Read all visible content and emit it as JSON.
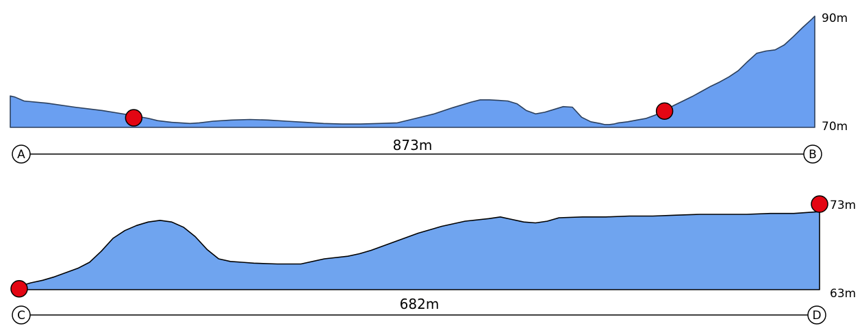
{
  "chart_data": [
    {
      "type": "area",
      "start_label": "A",
      "end_label": "B",
      "distance_label": "873m",
      "total_distance_m": 873,
      "y_top_label": "90m",
      "y_bottom_label": "70m",
      "ylim": [
        70,
        90
      ],
      "fill_color": "#6a9ff1",
      "line_color": "#2b3f5c",
      "marker_color": "#e30613",
      "profile": {
        "x": [
          0,
          5,
          15,
          40,
          70,
          100,
          130,
          150,
          160,
          170,
          175,
          185,
          195,
          205,
          220,
          240,
          260,
          280,
          300,
          320,
          340,
          360,
          380,
          400,
          420,
          440,
          460,
          480,
          500,
          510,
          520,
          530,
          540,
          550,
          560,
          570,
          580,
          590,
          600,
          610,
          620,
          630,
          640,
          645,
          650,
          655,
          660,
          670,
          680,
          690,
          700,
          710,
          720,
          730,
          740,
          750,
          760,
          770,
          780,
          790,
          800,
          810,
          820,
          830,
          840,
          850,
          860,
          870,
          873
        ],
        "y": [
          75.6,
          75.4,
          74.7,
          74.3,
          73.6,
          73.0,
          72.2,
          71.6,
          71.2,
          71.0,
          70.9,
          70.8,
          70.7,
          70.8,
          71.1,
          71.3,
          71.4,
          71.3,
          71.1,
          70.9,
          70.7,
          70.6,
          70.6,
          70.7,
          70.8,
          71.6,
          72.4,
          73.5,
          74.5,
          74.9,
          74.9,
          74.8,
          74.7,
          74.2,
          73.0,
          72.4,
          72.7,
          73.2,
          73.7,
          73.6,
          71.8,
          71.0,
          70.7,
          70.5,
          70.5,
          70.6,
          70.8,
          71.0,
          71.3,
          71.6,
          72.2,
          73.0,
          73.9,
          74.7,
          75.5,
          76.4,
          77.3,
          78.1,
          79.0,
          80.1,
          81.7,
          83.2,
          83.6,
          83.8,
          84.7,
          86.2,
          87.8,
          89.3,
          89.8
        ]
      },
      "markers": [
        {
          "x": 134,
          "y": 71.7
        },
        {
          "x": 710,
          "y": 72.9
        }
      ]
    },
    {
      "type": "area",
      "start_label": "C",
      "end_label": "D",
      "distance_label": "682m",
      "total_distance_m": 682,
      "y_top_label": "73m",
      "y_bottom_label": "63m",
      "ylim": [
        63,
        73
      ],
      "fill_color": "#6fa4ef",
      "line_color": "#000000",
      "marker_color": "#e30613",
      "profile": {
        "x": [
          0,
          10,
          20,
          30,
          40,
          50,
          60,
          70,
          80,
          90,
          100,
          110,
          120,
          130,
          140,
          150,
          160,
          170,
          180,
          190,
          200,
          220,
          240,
          260,
          280,
          290,
          300,
          320,
          340,
          360,
          380,
          400,
          410,
          420,
          430,
          440,
          450,
          460,
          480,
          500,
          520,
          540,
          560,
          580,
          600,
          620,
          640,
          660,
          680,
          682
        ],
        "y": [
          63.4,
          63.8,
          64.1,
          64.5,
          65.0,
          65.5,
          66.2,
          67.5,
          69.0,
          69.9,
          70.5,
          70.9,
          71.1,
          70.9,
          70.3,
          69.2,
          67.7,
          66.6,
          66.3,
          66.2,
          66.1,
          66.0,
          66.0,
          66.6,
          66.9,
          67.2,
          67.6,
          68.6,
          69.6,
          70.4,
          71.0,
          71.3,
          71.5,
          71.2,
          70.9,
          70.8,
          71.0,
          71.4,
          71.5,
          71.5,
          71.6,
          71.6,
          71.7,
          71.8,
          71.8,
          71.8,
          71.9,
          71.9,
          72.1,
          72.1
        ]
      },
      "markers": [
        {
          "x": 0,
          "y": 63.1
        },
        {
          "x": 682,
          "y": 73.0
        }
      ]
    }
  ]
}
